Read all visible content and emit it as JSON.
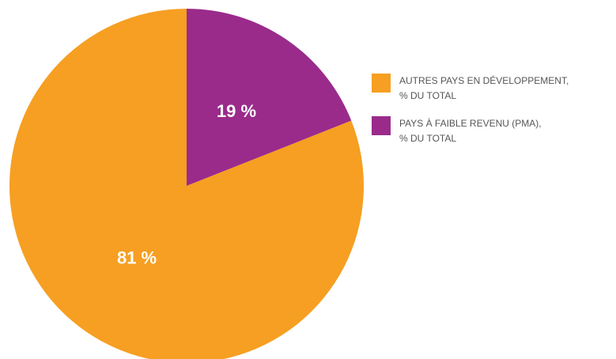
{
  "chart_data": {
    "type": "pie",
    "categories": [
      "AUTRES PAYS EN DÉVELOPPEMENT,\n% DU TOTAL",
      "PAYS À FAIBLE REVENU (PMA),\n% DU TOTAL"
    ],
    "values": [
      81,
      19
    ],
    "value_labels": [
      "81 %",
      "19 %"
    ],
    "colors": [
      "#f69f22",
      "#9a2b8b"
    ]
  }
}
